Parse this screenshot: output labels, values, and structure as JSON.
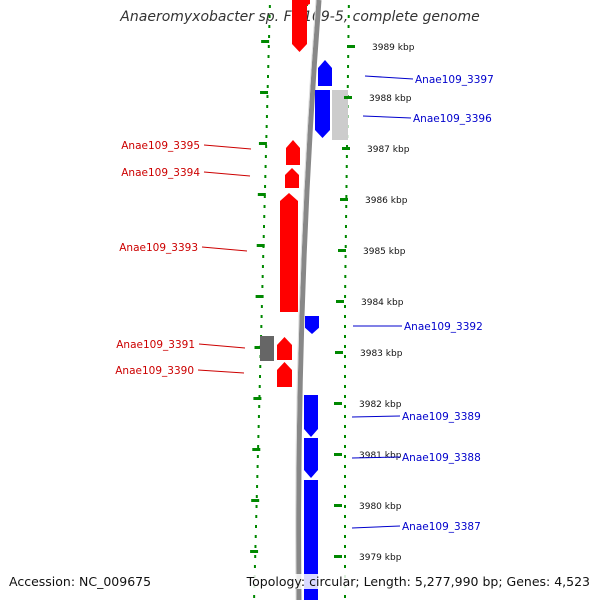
{
  "title": "Anaeromyxobacter sp. Fw109-5, complete genome",
  "footer": {
    "accession": "Accession: NC_009675",
    "topology": "Topology: circular; Length: 5,277,990 bp; Genes: 4,523"
  },
  "colors": {
    "forward": "#ff0000",
    "reverse": "#0000ff",
    "other_forward": "#666666",
    "other_reverse": "#cccccc",
    "green": "#00aa00",
    "backbone": "#888888",
    "ticks": "#008800",
    "label_red": "#cc0000",
    "label_blue": "#0000cc"
  },
  "scale_labels": [
    {
      "label": "3989 kbp",
      "kbp": 3989
    },
    {
      "label": "3988 kbp",
      "kbp": 3988
    },
    {
      "label": "3987 kbp",
      "kbp": 3987
    },
    {
      "label": "3986 kbp",
      "kbp": 3986
    },
    {
      "label": "3985 kbp",
      "kbp": 3985
    },
    {
      "label": "3984 kbp",
      "kbp": 3984
    },
    {
      "label": "3983 kbp",
      "kbp": 3983
    },
    {
      "label": "3982 kbp",
      "kbp": 3982
    },
    {
      "label": "3981 kbp",
      "kbp": 3981
    },
    {
      "label": "3980 kbp",
      "kbp": 3980
    },
    {
      "label": "3979 kbp",
      "kbp": 3979
    }
  ],
  "gene_labels": {
    "forward": [
      "Anae109_3395",
      "Anae109_3394",
      "Anae109_3393",
      "Anae109_3391",
      "Anae109_3390"
    ],
    "reverse": [
      "Anae109_3397",
      "Anae109_3396",
      "Anae109_3392",
      "Anae109_3389",
      "Anae109_3388",
      "Anae109_3387"
    ]
  }
}
